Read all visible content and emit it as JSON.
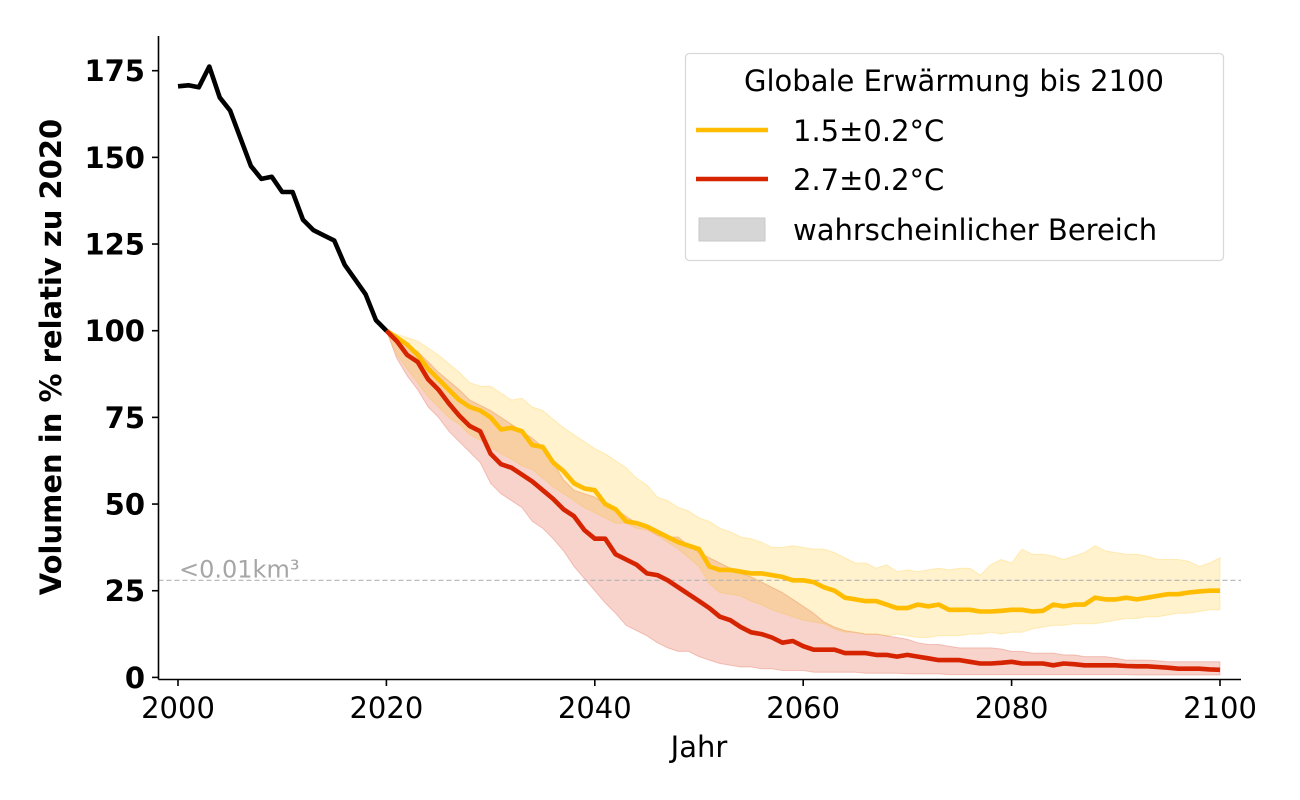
{
  "chart_data": {
    "type": "line",
    "title": "",
    "xlabel": "Jahr",
    "ylabel": "Volumen in % relativ zu 2020",
    "xlim": [
      1999,
      2102
    ],
    "ylim": [
      0,
      185
    ],
    "xticks": [
      2000,
      2020,
      2040,
      2060,
      2080,
      2100
    ],
    "xtick_labels": [
      "2000",
      "2020",
      "2040",
      "2060",
      "2080",
      "2100"
    ],
    "yticks": [
      0,
      25,
      50,
      75,
      100,
      125,
      150,
      175
    ],
    "ytick_labels": [
      "0",
      "25",
      "50",
      "75",
      "100",
      "125",
      "150",
      "175"
    ],
    "grid": false,
    "legend": {
      "title": "Globale Erwärmung bis 2100",
      "placement": "top-right",
      "entries": [
        {
          "label": "1.5±0.2°C",
          "kind": "line",
          "color": "#FFBC00"
        },
        {
          "label": "2.7±0.2°C",
          "kind": "line",
          "color": "#D62400"
        },
        {
          "label": "wahrscheinlicher Bereich",
          "kind": "patch",
          "color": "#D6D6D6"
        }
      ]
    },
    "annotations": [
      {
        "text": "<0.01km³",
        "kind": "hline",
        "y": 28,
        "color": "#A6A6A6",
        "style": "dashed"
      }
    ],
    "series": [
      {
        "name": "historisch",
        "color": "#000000",
        "x": [
          2000,
          2001,
          2002,
          2003,
          2004,
          2005,
          2006,
          2007,
          2008,
          2009,
          2010,
          2011,
          2012,
          2013,
          2014,
          2015,
          2016,
          2017,
          2018,
          2019,
          2020
        ],
        "values": [
          170.5,
          170.8,
          170.2,
          176.2,
          167.3,
          163.5,
          155.5,
          147.5,
          143.8,
          144.4,
          140.0,
          140.0,
          132.0,
          129.0,
          127.5,
          126.0,
          119.0,
          114.8,
          110.5,
          103.0,
          100.0
        ]
      },
      {
        "name": "1.5±0.2°C",
        "color": "#FFBC00",
        "band_color": "#FFBC00",
        "x": [
          2020,
          2021,
          2022,
          2023,
          2024,
          2025,
          2026,
          2027,
          2028,
          2029,
          2030,
          2031,
          2032,
          2033,
          2034,
          2035,
          2036,
          2037,
          2038,
          2039,
          2040,
          2041,
          2042,
          2043,
          2044,
          2045,
          2046,
          2047,
          2048,
          2049,
          2050,
          2051,
          2052,
          2053,
          2054,
          2055,
          2056,
          2057,
          2058,
          2059,
          2060,
          2061,
          2062,
          2063,
          2064,
          2065,
          2066,
          2067,
          2068,
          2069,
          2070,
          2071,
          2072,
          2073,
          2074,
          2075,
          2076,
          2077,
          2078,
          2079,
          2080,
          2081,
          2082,
          2083,
          2084,
          2085,
          2086,
          2087,
          2088,
          2089,
          2090,
          2091,
          2092,
          2093,
          2094,
          2095,
          2096,
          2097,
          2098,
          2099,
          2100
        ],
        "values": [
          100,
          98,
          96,
          93,
          89,
          86,
          83,
          80,
          78,
          77,
          75,
          71.5,
          72,
          71,
          67,
          66.5,
          62,
          59.5,
          56,
          54.5,
          54,
          50,
          48.5,
          45,
          44.5,
          43.5,
          42,
          40.5,
          39,
          38,
          37,
          32,
          31,
          31,
          30.5,
          30,
          30,
          29.5,
          29,
          28,
          28,
          27.5,
          26,
          25,
          23,
          22.5,
          22,
          22,
          21,
          20,
          20,
          21,
          20.5,
          21,
          19.5,
          19.5,
          19.5,
          19,
          19,
          19.2,
          19.5,
          19.5,
          19,
          19.2,
          21,
          20.5,
          21,
          21,
          23,
          22.5,
          22.5,
          23,
          22.5,
          23,
          23.5,
          24,
          24,
          24.5,
          24.8,
          25,
          25
        ],
        "lower": [
          100,
          93,
          89,
          85,
          81,
          78,
          75,
          73,
          70,
          68.5,
          66.5,
          64.5,
          63,
          61,
          60,
          57.5,
          55,
          53,
          51,
          49,
          47.5,
          46,
          44.5,
          44.5,
          43,
          42.5,
          41,
          39,
          37,
          34.5,
          32,
          27,
          24.5,
          24,
          23.5,
          22,
          21,
          19.5,
          18.5,
          17.5,
          16.5,
          16,
          15.5,
          14,
          13,
          13,
          12.5,
          12.5,
          12,
          12.5,
          12,
          11.5,
          11.5,
          12,
          12,
          12,
          12.5,
          12.5,
          13,
          12.5,
          13,
          13,
          14,
          14.5,
          15,
          15,
          15.5,
          15.5,
          15.5,
          16,
          16.5,
          17,
          17,
          17.5,
          17.5,
          18,
          18.5,
          18.5,
          19,
          19.5,
          19.5
        ],
        "upper": [
          100,
          99,
          98,
          97,
          95,
          93,
          90.5,
          88,
          85,
          84,
          84,
          82,
          80,
          80.5,
          78,
          77,
          74.5,
          72,
          70,
          68,
          66,
          64.5,
          62.5,
          60.5,
          57.5,
          55.5,
          52,
          51,
          49,
          48,
          46,
          45,
          43,
          42,
          40.5,
          40,
          39,
          37.5,
          37.5,
          38,
          37.5,
          37,
          37,
          36,
          34.5,
          33,
          33,
          31.5,
          32.5,
          30.5,
          31,
          30.5,
          31,
          31.5,
          31,
          31.5,
          31.5,
          29.5,
          32.5,
          34,
          33,
          37,
          35.5,
          35.5,
          35,
          34,
          35,
          36,
          38,
          36.5,
          36,
          35.5,
          35.5,
          35,
          34,
          34,
          34,
          33.5,
          32,
          33,
          34.5
        ]
      },
      {
        "name": "2.7±0.2°C",
        "color": "#D62400",
        "band_color": "#D62400",
        "x": [
          2020,
          2021,
          2022,
          2023,
          2024,
          2025,
          2026,
          2027,
          2028,
          2029,
          2030,
          2031,
          2032,
          2033,
          2034,
          2035,
          2036,
          2037,
          2038,
          2039,
          2040,
          2041,
          2042,
          2043,
          2044,
          2045,
          2046,
          2047,
          2048,
          2049,
          2050,
          2051,
          2052,
          2053,
          2054,
          2055,
          2056,
          2057,
          2058,
          2059,
          2060,
          2061,
          2062,
          2063,
          2064,
          2065,
          2066,
          2067,
          2068,
          2069,
          2070,
          2071,
          2072,
          2073,
          2074,
          2075,
          2076,
          2077,
          2078,
          2079,
          2080,
          2081,
          2082,
          2083,
          2084,
          2085,
          2086,
          2087,
          2088,
          2089,
          2090,
          2091,
          2092,
          2093,
          2094,
          2095,
          2096,
          2097,
          2098,
          2099,
          2100
        ],
        "values": [
          100,
          97,
          93,
          91,
          86,
          83,
          79,
          75.5,
          72.5,
          71,
          64.5,
          61.5,
          60.5,
          58.5,
          56.5,
          54,
          51.5,
          48.5,
          46.5,
          42.5,
          40,
          40,
          35.5,
          34,
          32.5,
          30,
          29.5,
          28,
          26,
          24,
          22,
          20,
          17.5,
          16.5,
          14.5,
          13,
          12.5,
          11.5,
          10,
          10.5,
          9,
          8,
          8,
          8,
          7,
          7,
          7,
          6.5,
          6.5,
          6,
          6.5,
          6,
          5.5,
          5,
          5,
          5,
          4.5,
          4,
          4,
          4.2,
          4.5,
          4,
          4,
          4,
          3.5,
          4,
          3.8,
          3.5,
          3.5,
          3.5,
          3.5,
          3.3,
          3.2,
          3.2,
          3,
          2.8,
          2.5,
          2.5,
          2.5,
          2.3,
          2.2
        ],
        "lower": [
          100,
          92,
          87,
          83,
          78,
          75,
          71,
          68,
          65,
          62,
          56,
          53,
          51,
          49,
          45,
          43,
          40,
          36.5,
          32,
          28.5,
          25,
          21.5,
          18.5,
          15,
          13.5,
          12,
          10,
          8.5,
          7.5,
          7.5,
          6,
          5,
          4,
          3.5,
          3,
          3,
          2.5,
          2.5,
          2,
          2,
          2,
          1.5,
          1.5,
          1.5,
          1.5,
          1.5,
          1.2,
          1.2,
          1.2,
          1.2,
          1,
          1,
          1,
          1,
          0.8,
          0.8,
          0.8,
          0.8,
          0.8,
          0.8,
          0.8,
          0.8,
          0.8,
          0.8,
          0.8,
          0.8,
          0.8,
          0.8,
          0.8,
          0.8,
          0.8,
          0.8,
          0.7,
          0.7,
          0.7,
          0.7,
          0.7,
          0.7,
          0.7,
          0.7,
          0.7
        ],
        "upper": [
          100,
          98.5,
          96,
          94,
          91,
          88,
          85.5,
          83,
          80,
          78.5,
          77,
          75,
          73,
          71,
          69,
          66.5,
          62,
          57,
          54,
          53,
          52,
          50,
          48.5,
          46.5,
          44.5,
          43,
          41,
          40.5,
          40.5,
          38,
          36,
          34.5,
          33,
          31.5,
          30,
          29,
          27.5,
          26,
          24.5,
          22.5,
          20.5,
          18.5,
          16,
          14.5,
          13.5,
          13,
          12.5,
          12.5,
          12,
          11.5,
          11,
          10,
          9.5,
          9.5,
          9,
          8.5,
          8.5,
          8.5,
          8.5,
          8.2,
          7.5,
          7.5,
          7,
          7,
          7,
          6.5,
          6.5,
          6,
          6,
          6,
          5.5,
          5,
          5,
          5,
          4.8,
          4.5,
          4.5,
          4.5,
          4.5,
          4.5,
          4.5
        ]
      }
    ]
  }
}
